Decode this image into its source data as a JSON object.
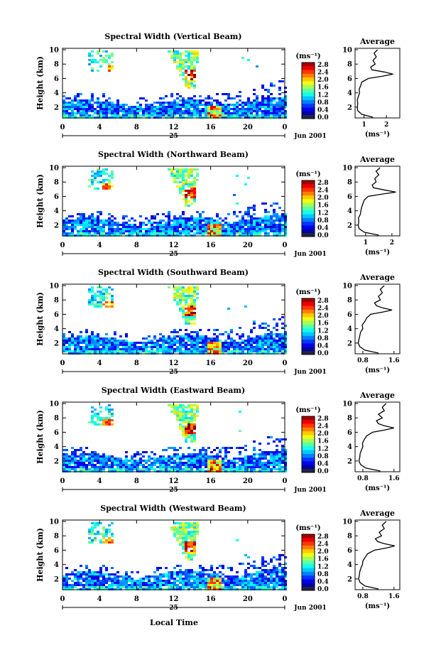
{
  "figure": {
    "xlabel": "Local Time",
    "date_label": "Jun 2001",
    "day_label": "25",
    "colorbar_unit": "(ms⁻¹)",
    "avg_title": "Average",
    "avg_xlabel": "(ms⁻¹)"
  },
  "chart_data": [
    {
      "type": "heatmap",
      "title": "Spectral Width (Vertical Beam)",
      "ylabel": "Height (km)",
      "xlabel": "",
      "x_ticks": [
        "0",
        "4",
        "8",
        "12",
        "16",
        "20",
        "0"
      ],
      "y_ticks": [
        "2",
        "4",
        "6",
        "8",
        "10"
      ],
      "xlim": [
        0,
        24
      ],
      "ylim": [
        0.5,
        10.2
      ],
      "colorbar": {
        "unit": "(ms⁻¹)",
        "ticks": [
          "2.8",
          "2.4",
          "2.0",
          "1.6",
          "1.2",
          "0.8",
          "0.4",
          "0.0"
        ],
        "range": [
          0,
          2.8
        ]
      },
      "average": {
        "title": "Average",
        "xlabel": "(ms⁻¹)",
        "x_ticks": [
          "1",
          "2"
        ],
        "xlim": [
          0.6,
          2.6
        ],
        "height": [
          0.6,
          1.0,
          1.5,
          2.0,
          2.5,
          3.0,
          3.5,
          4.0,
          4.5,
          5.0,
          5.5,
          6.0,
          6.3,
          6.6,
          6.9,
          7.2,
          7.6,
          8.0,
          8.5,
          9.0,
          9.5,
          10.0
        ],
        "width": [
          1.4,
          0.9,
          0.72,
          0.7,
          0.72,
          0.7,
          0.75,
          0.8,
          0.78,
          0.85,
          0.9,
          1.2,
          1.8,
          2.3,
          1.9,
          1.35,
          1.3,
          1.5,
          1.4,
          1.55,
          1.45,
          1.6
        ]
      }
    },
    {
      "type": "heatmap",
      "title": "Spectral Width (Northward Beam)",
      "ylabel": "Height (km)",
      "xlabel": "",
      "x_ticks": [
        "0",
        "4",
        "8",
        "12",
        "16",
        "20",
        "0"
      ],
      "y_ticks": [
        "2",
        "4",
        "6",
        "8",
        "10"
      ],
      "xlim": [
        0,
        24
      ],
      "ylim": [
        0.5,
        10.2
      ],
      "colorbar": {
        "unit": "(ms⁻¹)",
        "ticks": [
          "2.8",
          "2.4",
          "2.0",
          "1.6",
          "1.2",
          "0.8",
          "0.4",
          "0.0"
        ],
        "range": [
          0,
          2.8
        ]
      },
      "average": {
        "title": "Average",
        "xlabel": "(ms⁻¹)",
        "x_ticks": [
          "1",
          "2"
        ],
        "xlim": [
          0.6,
          2.3
        ],
        "height": [
          0.6,
          1.0,
          1.5,
          2.0,
          2.5,
          3.0,
          3.5,
          4.0,
          4.5,
          5.0,
          5.5,
          6.0,
          6.3,
          6.6,
          6.9,
          7.2,
          7.6,
          8.0,
          8.5,
          9.0,
          9.5,
          10.0
        ],
        "width": [
          1.5,
          0.95,
          0.75,
          0.72,
          0.74,
          0.73,
          0.8,
          0.82,
          0.85,
          0.9,
          0.95,
          1.1,
          1.6,
          2.15,
          1.7,
          1.3,
          1.25,
          1.4,
          1.35,
          1.5,
          1.4,
          1.55
        ]
      }
    },
    {
      "type": "heatmap",
      "title": "Spectral Width (Southward Beam)",
      "ylabel": "Height (km)",
      "xlabel": "",
      "x_ticks": [
        "0",
        "4",
        "8",
        "12",
        "16",
        "20",
        "0"
      ],
      "y_ticks": [
        "2",
        "4",
        "6",
        "8",
        "10"
      ],
      "xlim": [
        0,
        24
      ],
      "ylim": [
        0.5,
        10.2
      ],
      "colorbar": {
        "unit": "(ms⁻¹)",
        "ticks": [
          "2.8",
          "2.4",
          "2.0",
          "1.6",
          "1.2",
          "0.8",
          "0.4",
          "0.0"
        ],
        "range": [
          0,
          2.8
        ]
      },
      "average": {
        "title": "Average",
        "xlabel": "(ms⁻¹)",
        "x_ticks": [
          "0.8",
          "1.6"
        ],
        "xlim": [
          0.6,
          1.75
        ],
        "height": [
          0.6,
          1.0,
          1.5,
          2.0,
          2.5,
          3.0,
          3.5,
          4.0,
          4.5,
          5.0,
          5.5,
          6.0,
          6.3,
          6.6,
          6.9,
          7.2,
          7.6,
          8.0,
          8.5,
          9.0,
          9.5,
          10.0
        ],
        "width": [
          1.2,
          0.85,
          0.72,
          0.68,
          0.7,
          0.72,
          0.74,
          0.8,
          0.78,
          0.85,
          0.9,
          1.0,
          1.3,
          1.55,
          1.3,
          1.15,
          1.1,
          1.25,
          1.2,
          1.3,
          1.25,
          1.35
        ]
      }
    },
    {
      "type": "heatmap",
      "title": "Spectral Width (Eastward Beam)",
      "ylabel": "Height (km)",
      "xlabel": "",
      "x_ticks": [
        "0",
        "4",
        "8",
        "12",
        "16",
        "20",
        "0"
      ],
      "y_ticks": [
        "2",
        "4",
        "6",
        "8",
        "10"
      ],
      "xlim": [
        0,
        24
      ],
      "ylim": [
        0.5,
        10.2
      ],
      "colorbar": {
        "unit": "(ms⁻¹)",
        "ticks": [
          "2.8",
          "2.4",
          "2.0",
          "1.6",
          "1.2",
          "0.8",
          "0.4",
          "0.0"
        ],
        "range": [
          0,
          2.8
        ]
      },
      "average": {
        "title": "Average",
        "xlabel": "(ms⁻¹)",
        "x_ticks": [
          "0.8",
          "1.6"
        ],
        "xlim": [
          0.6,
          1.75
        ],
        "height": [
          0.6,
          1.0,
          1.5,
          2.0,
          2.5,
          3.0,
          3.5,
          4.0,
          4.5,
          5.0,
          5.5,
          6.0,
          6.3,
          6.6,
          6.9,
          7.2,
          7.6,
          8.0,
          8.5,
          9.0,
          9.5,
          10.0
        ],
        "width": [
          1.25,
          0.88,
          0.74,
          0.7,
          0.72,
          0.73,
          0.76,
          0.8,
          0.79,
          0.84,
          0.9,
          1.05,
          1.35,
          1.6,
          1.35,
          1.2,
          1.15,
          1.3,
          1.2,
          1.35,
          1.3,
          1.4
        ]
      }
    },
    {
      "type": "heatmap",
      "title": "Spectral Width (Westward Beam)",
      "ylabel": "Height (km)",
      "xlabel": "",
      "x_ticks": [
        "0",
        "4",
        "8",
        "12",
        "16",
        "20",
        "0"
      ],
      "y_ticks": [
        "2",
        "4",
        "6",
        "8",
        "10"
      ],
      "xlim": [
        0,
        24
      ],
      "ylim": [
        0.5,
        10.2
      ],
      "colorbar": {
        "unit": "(ms⁻¹)",
        "ticks": [
          "2.8",
          "2.4",
          "2.0",
          "1.6",
          "1.2",
          "0.8",
          "0.4",
          "0.0"
        ],
        "range": [
          0,
          2.8
        ]
      },
      "average": {
        "title": "Average",
        "xlabel": "(ms⁻¹)",
        "x_ticks": [
          "0.8",
          "1.6"
        ],
        "xlim": [
          0.6,
          1.75
        ],
        "height": [
          0.6,
          1.0,
          1.5,
          2.0,
          2.5,
          3.0,
          3.5,
          4.0,
          4.5,
          5.0,
          5.5,
          6.0,
          6.3,
          6.6,
          6.9,
          7.2,
          7.6,
          8.0,
          8.5,
          9.0,
          9.5,
          10.0
        ],
        "width": [
          1.2,
          0.86,
          0.73,
          0.69,
          0.71,
          0.72,
          0.75,
          0.79,
          0.8,
          0.86,
          0.92,
          1.1,
          1.4,
          1.62,
          1.35,
          1.18,
          1.12,
          1.28,
          1.22,
          1.35,
          1.3,
          1.4
        ]
      }
    }
  ]
}
